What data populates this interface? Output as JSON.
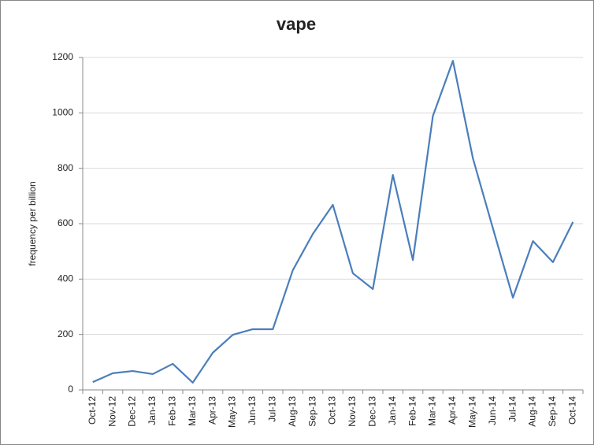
{
  "chart_data": {
    "type": "line",
    "title": "vape",
    "y_label": "frequency per billion",
    "categories": [
      "Oct-12",
      "Nov-12",
      "Dec-12",
      "Jan-13",
      "Feb-13",
      "Mar-13",
      "Apr-13",
      "May-13",
      "Jun-13",
      "Jul-13",
      "Aug-13",
      "Sep-13",
      "Oct-13",
      "Nov-13",
      "Dec-13",
      "Jan-14",
      "Feb-14",
      "Mar-14",
      "Apr-14",
      "May-14",
      "Jun-14",
      "Jul-14",
      "Aug-14",
      "Sep-14",
      "Oct-14"
    ],
    "series": [
      {
        "name": "vape",
        "color": "#4a7ebb",
        "values": [
          28,
          60,
          68,
          57,
          94,
          26,
          134,
          199,
          219,
          219,
          432,
          563,
          668,
          421,
          364,
          776,
          469,
          989,
          1188,
          836,
          583,
          333,
          537,
          461,
          606
        ]
      }
    ],
    "ylim": [
      0,
      1200
    ],
    "yticks": [
      0,
      200,
      400,
      600,
      800,
      1000,
      1200
    ],
    "grid": true
  }
}
